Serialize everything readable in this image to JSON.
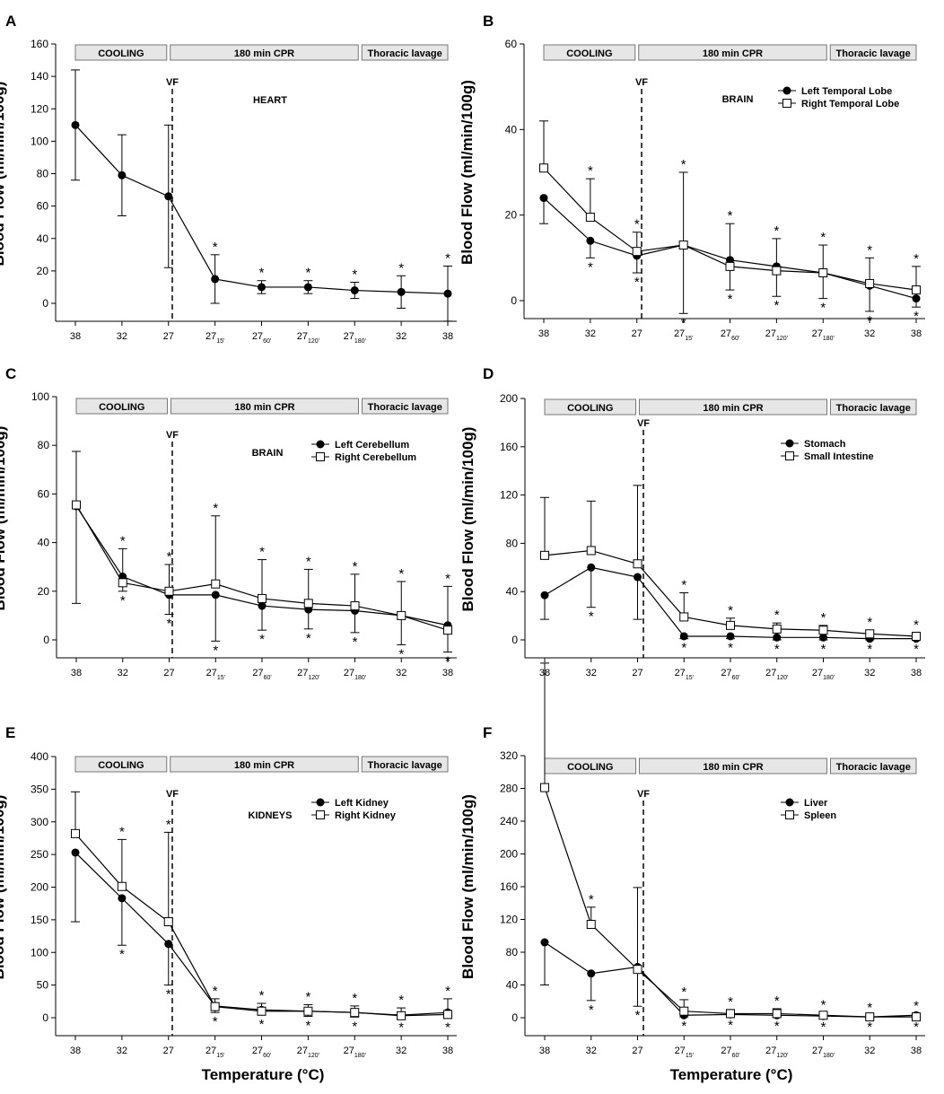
{
  "figure": {
    "xlabel": "Temperature (°C)",
    "ylabel": "Blood Flow (ml/min/100g)",
    "x_ticks": [
      {
        "base": "38",
        "sub": ""
      },
      {
        "base": "32",
        "sub": ""
      },
      {
        "base": "27",
        "sub": ""
      },
      {
        "base": "27",
        "sub": "15'"
      },
      {
        "base": "27",
        "sub": "60'"
      },
      {
        "base": "27",
        "sub": "120'"
      },
      {
        "base": "27",
        "sub": "180'"
      },
      {
        "base": "32",
        "sub": ""
      },
      {
        "base": "38",
        "sub": ""
      }
    ],
    "phases": [
      "COOLING",
      "180 min CPR",
      "Thoracic lavage"
    ],
    "vf_label": "VF",
    "significance_marker": "*"
  },
  "chart_data": [
    {
      "panel": "A",
      "type": "line",
      "title": "HEART",
      "ylim": [
        0,
        160
      ],
      "yticks": [
        0,
        20,
        40,
        60,
        80,
        100,
        120,
        140,
        160
      ],
      "legend": false,
      "series": [
        {
          "name": "Heart",
          "marker": "filled",
          "values": [
            110,
            79,
            66,
            15,
            10,
            10,
            8,
            7,
            6
          ],
          "err": [
            34,
            25,
            44,
            15,
            4,
            4,
            5,
            10,
            17
          ],
          "stars_above": [
            false,
            false,
            false,
            true,
            true,
            true,
            true,
            true,
            true
          ],
          "stars_below": [
            false,
            false,
            false,
            false,
            false,
            false,
            false,
            false,
            false
          ]
        }
      ]
    },
    {
      "panel": "B",
      "type": "line",
      "title": "BRAIN",
      "ylim": [
        0,
        60
      ],
      "yticks": [
        0,
        20,
        40,
        60
      ],
      "legend": true,
      "series": [
        {
          "name": "Left Temporal Lobe",
          "marker": "filled",
          "values": [
            24,
            14,
            10.5,
            13,
            9.5,
            8,
            6.5,
            3.5,
            0.5
          ],
          "err": [
            6,
            4,
            4,
            16,
            7,
            7,
            6,
            6,
            2
          ],
          "stars_above": [
            false,
            false,
            false,
            false,
            false,
            false,
            false,
            false,
            false
          ],
          "stars_below": [
            false,
            true,
            true,
            true,
            true,
            true,
            true,
            true,
            true
          ]
        },
        {
          "name": "Right Temporal Lobe",
          "marker": "open",
          "values": [
            31,
            19.5,
            11.5,
            13,
            8,
            7,
            6.5,
            4,
            2.5
          ],
          "err": [
            11,
            9,
            4.5,
            17,
            10,
            7.5,
            6.5,
            6,
            5.5
          ],
          "stars_above": [
            false,
            true,
            true,
            true,
            true,
            true,
            true,
            true,
            true
          ],
          "stars_below": [
            false,
            false,
            false,
            false,
            false,
            false,
            false,
            false,
            false
          ]
        }
      ]
    },
    {
      "panel": "C",
      "type": "line",
      "title": "BRAIN",
      "ylim": [
        0,
        100
      ],
      "yticks": [
        0,
        20,
        40,
        60,
        80,
        100
      ],
      "legend": true,
      "series": [
        {
          "name": "Left Cerebellum",
          "marker": "filled",
          "values": [
            55,
            26,
            18.5,
            18.5,
            14,
            12.5,
            12,
            10,
            6
          ],
          "err": [
            40,
            6,
            8,
            19,
            10,
            8,
            9,
            12,
            11
          ],
          "stars_above": [
            false,
            false,
            false,
            false,
            false,
            false,
            false,
            false,
            false
          ],
          "stars_below": [
            false,
            true,
            true,
            true,
            true,
            true,
            true,
            true,
            true
          ]
        },
        {
          "name": "Right Cerebellum",
          "marker": "open",
          "values": [
            55.5,
            23.5,
            20,
            23,
            17,
            15,
            14,
            10,
            4
          ],
          "err": [
            22,
            14,
            11,
            28,
            16,
            14,
            13,
            14,
            18
          ],
          "stars_above": [
            false,
            true,
            true,
            true,
            true,
            true,
            true,
            true,
            true
          ],
          "stars_below": [
            false,
            false,
            false,
            false,
            false,
            false,
            false,
            false,
            false
          ]
        }
      ]
    },
    {
      "panel": "D",
      "type": "line",
      "title": "",
      "ylim": [
        0,
        200
      ],
      "yticks": [
        0,
        40,
        80,
        120,
        160,
        200
      ],
      "legend": true,
      "series": [
        {
          "name": "Stomach",
          "marker": "filled",
          "values": [
            37,
            60,
            52,
            3,
            3,
            2,
            2,
            1,
            1
          ],
          "err": [
            20,
            33,
            35,
            2,
            2,
            2,
            2,
            1,
            1
          ],
          "stars_above": [
            false,
            false,
            false,
            false,
            false,
            false,
            false,
            false,
            false
          ],
          "stars_below": [
            false,
            true,
            false,
            true,
            true,
            true,
            true,
            true,
            true
          ]
        },
        {
          "name": "Small Intestine",
          "marker": "open",
          "values": [
            70,
            74,
            63,
            19,
            12,
            9,
            8,
            5,
            3
          ],
          "err": [
            48,
            41,
            65,
            20,
            6,
            5,
            4,
            3,
            3
          ],
          "stars_above": [
            false,
            false,
            false,
            true,
            true,
            true,
            true,
            true,
            true
          ],
          "stars_below": [
            false,
            false,
            false,
            false,
            false,
            false,
            false,
            false,
            false
          ]
        }
      ]
    },
    {
      "panel": "E",
      "type": "line",
      "title": "KIDNEYS",
      "ylim": [
        0,
        400
      ],
      "yticks": [
        0,
        50,
        100,
        150,
        200,
        250,
        300,
        350,
        400
      ],
      "legend": true,
      "series": [
        {
          "name": "Left Kidney",
          "marker": "filled",
          "values": [
            253,
            183,
            113,
            18,
            12,
            10,
            8,
            4,
            8
          ],
          "err": [
            106,
            72,
            63,
            10,
            8,
            8,
            7,
            5,
            9
          ],
          "stars_above": [
            false,
            false,
            false,
            false,
            false,
            false,
            false,
            false,
            false
          ],
          "stars_below": [
            false,
            true,
            true,
            true,
            true,
            true,
            true,
            true,
            true
          ]
        },
        {
          "name": "Right Kidney",
          "marker": "open",
          "values": [
            282,
            201,
            147,
            17,
            10,
            10,
            8,
            3,
            5
          ],
          "err": [
            64,
            72,
            137,
            12,
            12,
            10,
            10,
            12,
            24
          ],
          "stars_above": [
            false,
            true,
            true,
            true,
            true,
            true,
            true,
            true,
            true
          ],
          "stars_below": [
            false,
            false,
            false,
            false,
            false,
            false,
            false,
            false,
            false
          ]
        }
      ]
    },
    {
      "panel": "F",
      "type": "line",
      "title": "",
      "ylim": [
        0,
        320
      ],
      "yticks": [
        0,
        40,
        80,
        120,
        160,
        200,
        240,
        280,
        320
      ],
      "legend": true,
      "series": [
        {
          "name": "Liver",
          "marker": "filled",
          "values": [
            92,
            54,
            62,
            3,
            4,
            3,
            2,
            1,
            3
          ],
          "err": [
            52,
            33,
            48,
            2,
            2,
            2,
            2,
            1,
            3
          ],
          "stars_above": [
            false,
            false,
            false,
            false,
            false,
            false,
            false,
            false,
            false
          ],
          "stars_below": [
            false,
            true,
            true,
            true,
            true,
            true,
            true,
            true,
            true
          ]
        },
        {
          "name": "Spleen",
          "marker": "open",
          "values": [
            281,
            114,
            59,
            8,
            5,
            5,
            3,
            1,
            1
          ],
          "err": [
            152,
            21,
            100,
            14,
            5,
            6,
            3,
            2,
            4
          ],
          "stars_above": [
            false,
            true,
            false,
            true,
            true,
            true,
            true,
            true,
            true
          ],
          "stars_below": [
            false,
            false,
            false,
            false,
            false,
            false,
            false,
            false,
            false
          ]
        }
      ]
    }
  ]
}
